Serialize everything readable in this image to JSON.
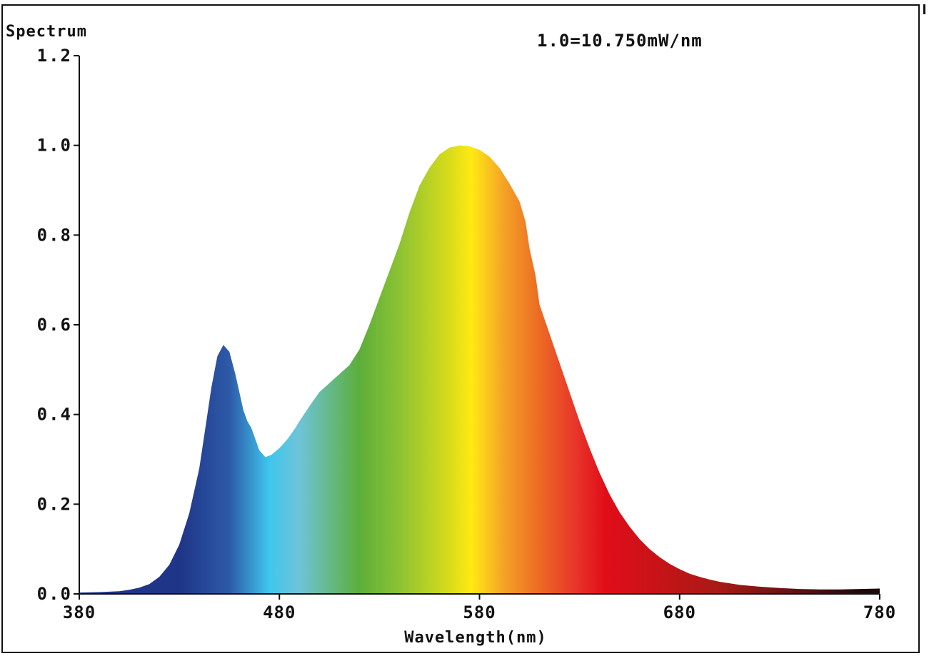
{
  "header": {
    "y_title": "Spectrum",
    "scale_note": "1.0=10.750mW/nm"
  },
  "colors": {
    "axis": "#111111",
    "background": "#ffffff",
    "spectrum_stops": [
      "#1f3587",
      "#2d5aa8",
      "#3fc6ee",
      "#6ec4d8",
      "#5cae3a",
      "#8cc234",
      "#d8dc1a",
      "#ffe914",
      "#f4a326",
      "#ec6a24",
      "#e8352a",
      "#e10d19",
      "#a81a16",
      "#5b1212",
      "#1e0a0a"
    ]
  },
  "chart_data": {
    "type": "area",
    "title": "",
    "xlabel": "Wavelength(nm)",
    "ylabel": "Spectrum",
    "xlim": [
      380,
      780
    ],
    "ylim": [
      0,
      1.2
    ],
    "x_ticks": [
      "380",
      "480",
      "580",
      "680",
      "780"
    ],
    "y_ticks": [
      "0.0",
      "0.2",
      "0.4",
      "0.6",
      "0.8",
      "1.0",
      "1.2"
    ],
    "grid": false,
    "series": [
      {
        "x": [
          380,
          390,
          400,
          405,
          410,
          415,
          420,
          425,
          430,
          435,
          440,
          443,
          446,
          449,
          452,
          455,
          458,
          460,
          462,
          464,
          466,
          468,
          470,
          473,
          476,
          480,
          484,
          488,
          490,
          493,
          496,
          500,
          505,
          510,
          515,
          520,
          525,
          530,
          535,
          540,
          545,
          550,
          555,
          560,
          565,
          570,
          575,
          580,
          585,
          590,
          595,
          600,
          603,
          605,
          608,
          610,
          615,
          620,
          625,
          630,
          635,
          640,
          645,
          650,
          655,
          660,
          665,
          670,
          675,
          680,
          685,
          690,
          695,
          700,
          710,
          720,
          730,
          740,
          750,
          760,
          770,
          780
        ],
        "values": [
          0.003,
          0.004,
          0.006,
          0.009,
          0.014,
          0.022,
          0.038,
          0.065,
          0.11,
          0.18,
          0.28,
          0.37,
          0.46,
          0.53,
          0.555,
          0.54,
          0.49,
          0.45,
          0.41,
          0.385,
          0.37,
          0.345,
          0.32,
          0.305,
          0.31,
          0.325,
          0.345,
          0.37,
          0.385,
          0.405,
          0.425,
          0.45,
          0.47,
          0.49,
          0.51,
          0.545,
          0.6,
          0.66,
          0.72,
          0.78,
          0.85,
          0.91,
          0.95,
          0.98,
          0.995,
          1.0,
          0.998,
          0.99,
          0.975,
          0.95,
          0.915,
          0.875,
          0.83,
          0.77,
          0.71,
          0.645,
          0.58,
          0.515,
          0.45,
          0.385,
          0.325,
          0.27,
          0.222,
          0.182,
          0.15,
          0.122,
          0.1,
          0.082,
          0.067,
          0.055,
          0.045,
          0.038,
          0.032,
          0.027,
          0.02,
          0.016,
          0.013,
          0.011,
          0.01,
          0.01,
          0.011,
          0.012
        ]
      }
    ]
  }
}
